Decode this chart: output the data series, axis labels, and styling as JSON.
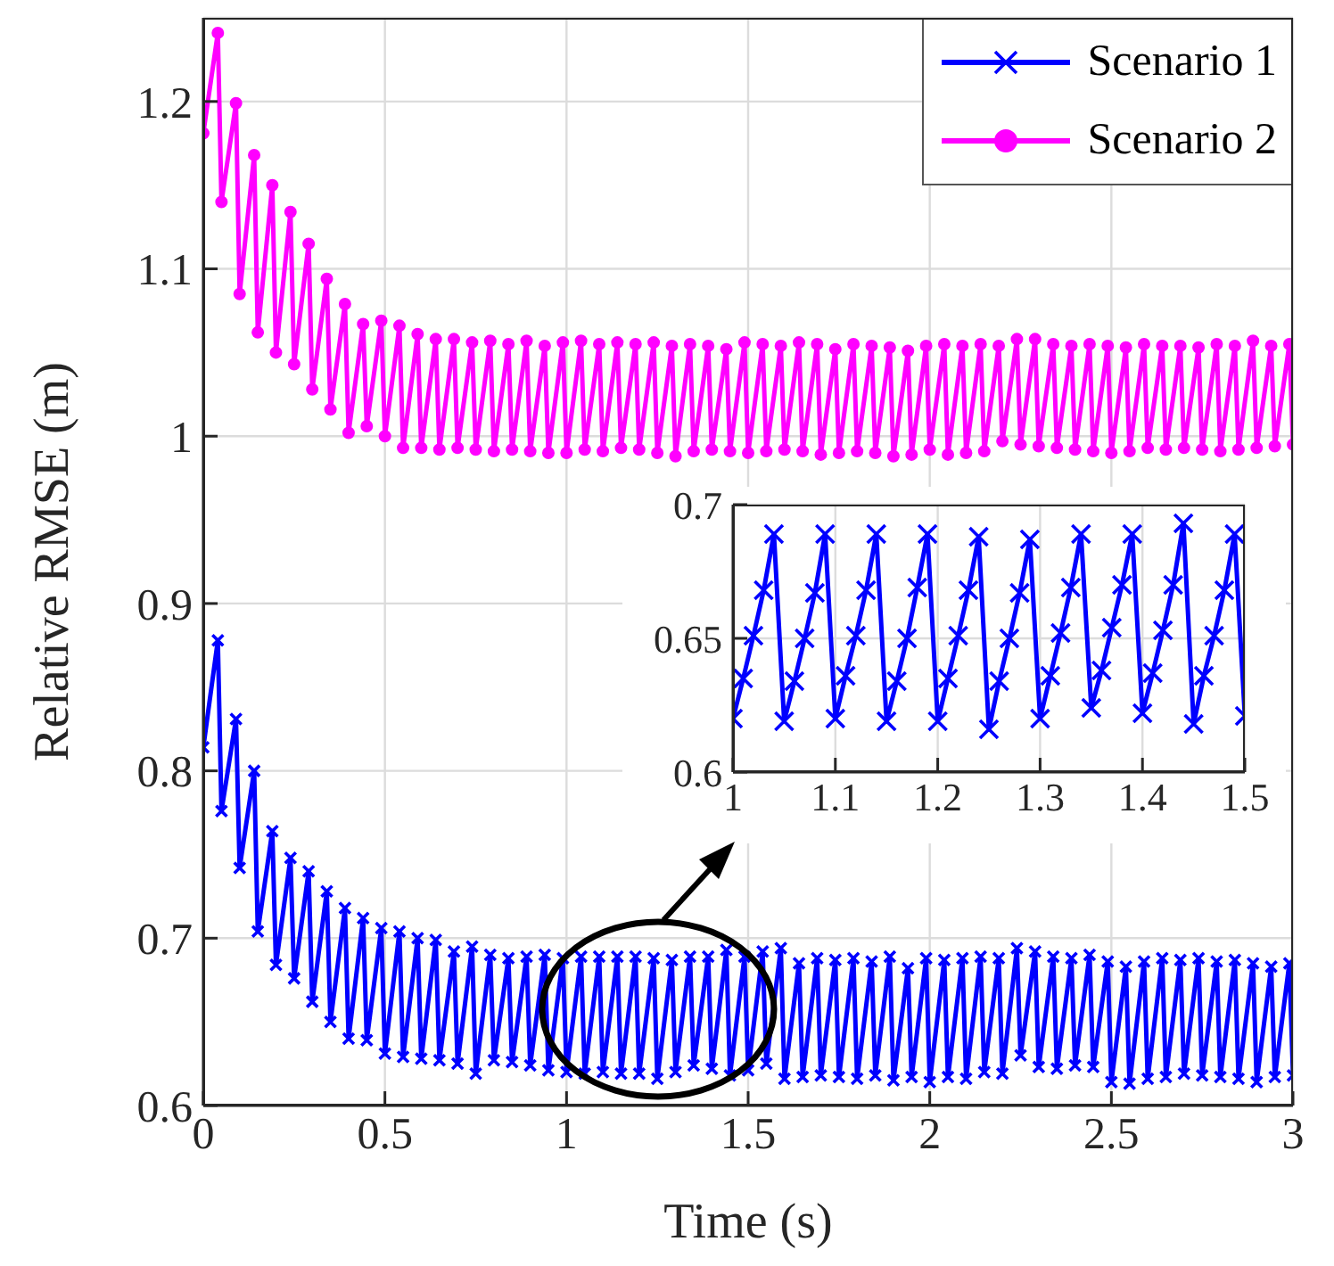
{
  "chart_data": [
    {
      "type": "line",
      "xlabel": "Time (s)",
      "ylabel": "Relative RMSE (m)",
      "xlim": [
        0,
        3
      ],
      "xticks": [
        0,
        0.5,
        1,
        1.5,
        2,
        2.5,
        3
      ],
      "ylim": [
        0.6,
        1.25
      ],
      "yticks": [
        0.6,
        0.7,
        0.8,
        0.9,
        1,
        1.1,
        1.2
      ],
      "grid": true,
      "legend": "top right",
      "x": [
        0,
        0.04,
        0.05,
        0.09,
        0.1,
        0.14,
        0.15,
        0.19,
        0.2,
        0.24,
        0.25,
        0.29,
        0.3,
        0.34,
        0.35,
        0.39,
        0.4,
        0.44,
        0.45,
        0.49,
        0.5,
        0.54,
        0.55,
        0.59,
        0.6,
        0.64,
        0.65,
        0.69,
        0.7,
        0.74,
        0.75,
        0.79,
        0.8,
        0.84,
        0.85,
        0.89,
        0.9,
        0.94,
        0.95,
        0.99,
        1,
        1.04,
        1.05,
        1.09,
        1.1,
        1.14,
        1.15,
        1.19,
        1.2,
        1.24,
        1.25,
        1.29,
        1.3,
        1.34,
        1.35,
        1.39,
        1.4,
        1.44,
        1.45,
        1.49,
        1.5,
        1.54,
        1.55,
        1.59,
        1.6,
        1.64,
        1.65,
        1.69,
        1.7,
        1.74,
        1.75,
        1.79,
        1.8,
        1.84,
        1.85,
        1.89,
        1.9,
        1.94,
        1.95,
        1.99,
        2,
        2.04,
        2.05,
        2.09,
        2.1,
        2.14,
        2.15,
        2.19,
        2.2,
        2.24,
        2.25,
        2.29,
        2.3,
        2.34,
        2.35,
        2.39,
        2.4,
        2.44,
        2.45,
        2.49,
        2.5,
        2.54,
        2.55,
        2.59,
        2.6,
        2.64,
        2.65,
        2.69,
        2.7,
        2.74,
        2.75,
        2.79,
        2.8,
        2.84,
        2.85,
        2.89,
        2.9,
        2.94,
        2.95,
        2.99,
        3
      ],
      "series": [
        {
          "name": "Scenario 1",
          "color": "#0000ff",
          "marker": "cross",
          "values": [
            0.814,
            0.878,
            0.776,
            0.831,
            0.742,
            0.8,
            0.704,
            0.764,
            0.684,
            0.748,
            0.676,
            0.74,
            0.662,
            0.728,
            0.65,
            0.718,
            0.64,
            0.712,
            0.639,
            0.706,
            0.631,
            0.704,
            0.629,
            0.7,
            0.628,
            0.699,
            0.627,
            0.692,
            0.625,
            0.695,
            0.619,
            0.69,
            0.627,
            0.688,
            0.626,
            0.689,
            0.624,
            0.69,
            0.621,
            0.688,
            0.62,
            0.689,
            0.619,
            0.689,
            0.62,
            0.689,
            0.619,
            0.689,
            0.619,
            0.688,
            0.616,
            0.687,
            0.62,
            0.689,
            0.624,
            0.689,
            0.622,
            0.693,
            0.618,
            0.689,
            0.621,
            0.692,
            0.625,
            0.694,
            0.616,
            0.685,
            0.617,
            0.688,
            0.618,
            0.687,
            0.617,
            0.688,
            0.616,
            0.686,
            0.618,
            0.689,
            0.615,
            0.682,
            0.617,
            0.688,
            0.614,
            0.687,
            0.617,
            0.688,
            0.616,
            0.689,
            0.62,
            0.688,
            0.619,
            0.694,
            0.63,
            0.692,
            0.623,
            0.689,
            0.622,
            0.688,
            0.624,
            0.69,
            0.623,
            0.686,
            0.614,
            0.683,
            0.613,
            0.686,
            0.616,
            0.688,
            0.617,
            0.687,
            0.619,
            0.688,
            0.618,
            0.686,
            0.617,
            0.687,
            0.616,
            0.685,
            0.614,
            0.683,
            0.617,
            0.685,
            0.618
          ]
        },
        {
          "name": "Scenario 2",
          "color": "#ff00ff",
          "marker": "circle",
          "values": [
            1.181,
            1.241,
            1.14,
            1.199,
            1.085,
            1.168,
            1.062,
            1.15,
            1.05,
            1.134,
            1.043,
            1.115,
            1.028,
            1.094,
            1.016,
            1.079,
            1.002,
            1.067,
            1.006,
            1.069,
            1.0,
            1.066,
            0.993,
            1.061,
            0.993,
            1.058,
            0.992,
            1.058,
            0.993,
            1.056,
            0.992,
            1.057,
            0.991,
            1.055,
            0.992,
            1.057,
            0.991,
            1.054,
            0.99,
            1.056,
            0.99,
            1.057,
            0.992,
            1.055,
            0.991,
            1.056,
            0.993,
            1.055,
            0.992,
            1.056,
            0.99,
            1.054,
            0.988,
            1.055,
            0.991,
            1.054,
            0.992,
            1.052,
            0.991,
            1.056,
            0.99,
            1.055,
            0.991,
            1.054,
            0.992,
            1.056,
            0.991,
            1.055,
            0.989,
            1.052,
            0.99,
            1.055,
            0.991,
            1.054,
            0.99,
            1.053,
            0.988,
            1.051,
            0.989,
            1.054,
            0.992,
            1.055,
            0.989,
            1.054,
            0.99,
            1.055,
            0.991,
            1.054,
            0.997,
            1.058,
            0.995,
            1.058,
            0.994,
            1.055,
            0.993,
            1.054,
            0.992,
            1.055,
            0.991,
            1.054,
            0.99,
            1.053,
            0.991,
            1.055,
            0.993,
            1.054,
            0.992,
            1.054,
            0.993,
            1.053,
            0.992,
            1.055,
            0.991,
            1.054,
            0.992,
            1.057,
            0.993,
            1.054,
            0.994,
            1.055,
            0.995
          ]
        }
      ]
    },
    {
      "type": "line",
      "xlim": [
        1,
        1.5
      ],
      "xticks": [
        1,
        1.1,
        1.2,
        1.3,
        1.4,
        1.5
      ],
      "ylim": [
        0.6,
        0.7
      ],
      "yticks": [
        0.6,
        0.65,
        0.7
      ],
      "grid": true,
      "x": [
        1,
        1.01,
        1.02,
        1.03,
        1.04,
        1.05,
        1.06,
        1.07,
        1.08,
        1.09,
        1.1,
        1.11,
        1.12,
        1.13,
        1.14,
        1.15,
        1.16,
        1.17,
        1.18,
        1.19,
        1.2,
        1.21,
        1.22,
        1.23,
        1.24,
        1.25,
        1.26,
        1.27,
        1.28,
        1.29,
        1.3,
        1.31,
        1.32,
        1.33,
        1.34,
        1.35,
        1.36,
        1.37,
        1.38,
        1.39,
        1.4,
        1.41,
        1.42,
        1.43,
        1.44,
        1.45,
        1.46,
        1.47,
        1.48,
        1.49,
        1.5
      ],
      "series": [
        {
          "color": "#0000ff",
          "marker": "cross",
          "values": [
            0.62,
            0.635,
            0.651,
            0.668,
            0.689,
            0.619,
            0.634,
            0.65,
            0.667,
            0.689,
            0.62,
            0.636,
            0.651,
            0.668,
            0.689,
            0.619,
            0.634,
            0.65,
            0.669,
            0.689,
            0.619,
            0.635,
            0.651,
            0.668,
            0.688,
            0.616,
            0.634,
            0.65,
            0.667,
            0.687,
            0.62,
            0.636,
            0.652,
            0.669,
            0.689,
            0.624,
            0.638,
            0.654,
            0.67,
            0.689,
            0.622,
            0.637,
            0.653,
            0.67,
            0.693,
            0.618,
            0.636,
            0.651,
            0.668,
            0.689,
            0.621
          ]
        }
      ]
    }
  ]
}
